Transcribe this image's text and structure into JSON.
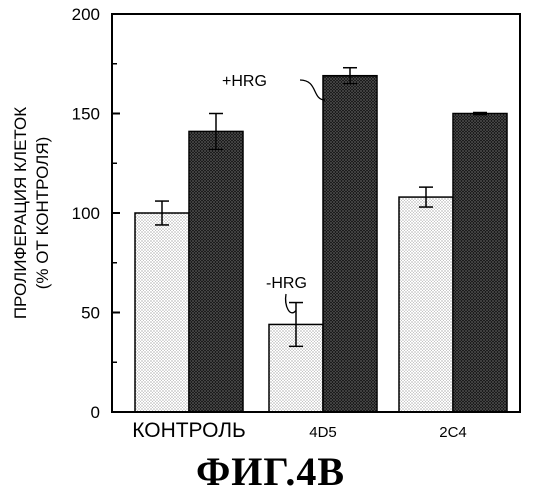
{
  "caption": "ФИГ.4В",
  "chart_data": {
    "type": "bar",
    "ylabel": "ПРОЛИФЕРАЦИЯ КЛЕТОК (% ОТ КОНТРОЛЯ)",
    "ylabel_lines": [
      "ПРОЛИФЕРАЦИЯ КЛЕТОК",
      "(% ОТ КОНТРОЛЯ)"
    ],
    "xlabel": "",
    "ylim": [
      0,
      200
    ],
    "yticks": [
      0,
      50,
      100,
      150,
      200
    ],
    "grid": false,
    "categories": [
      "КОНТРОЛЬ",
      "4D5",
      "2C4"
    ],
    "series": [
      {
        "name": "-HRG",
        "values": [
          100,
          44,
          108
        ],
        "errors": [
          6,
          11,
          5
        ],
        "fill": "#c8c8c8"
      },
      {
        "name": "+HRG",
        "values": [
          141,
          169,
          150
        ],
        "errors": [
          9,
          4,
          0.5
        ],
        "fill": "#3a3a3a"
      }
    ],
    "annotations": [
      {
        "text": "+HRG",
        "series": 1,
        "category": 1
      },
      {
        "text": "-HRG",
        "series": 0,
        "category": 1
      }
    ]
  }
}
